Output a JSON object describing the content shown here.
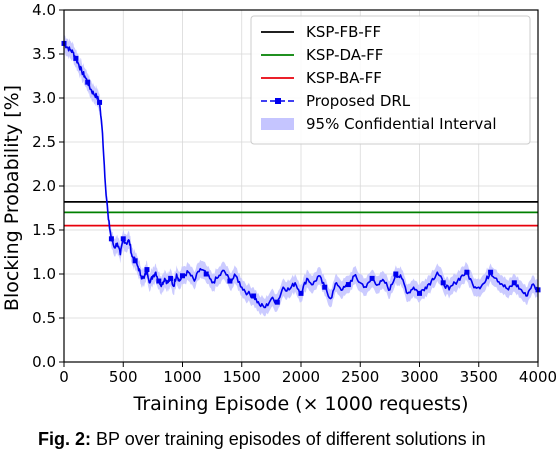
{
  "caption": {
    "label": "Fig. 2:",
    "text": "BP over training episodes of different solutions in"
  },
  "chart_data": {
    "type": "line",
    "title": "",
    "xlabel": "Training Episode (× 1000 requests)",
    "ylabel": "Blocking Probability [%]",
    "xlim": [
      0,
      4000
    ],
    "ylim": [
      0,
      4.0
    ],
    "xticks": [
      0,
      500,
      1000,
      1500,
      2000,
      2500,
      3000,
      3500,
      4000
    ],
    "yticks": [
      0.0,
      0.5,
      1.0,
      1.5,
      2.0,
      2.5,
      3.0,
      3.5,
      4.0
    ],
    "grid": true,
    "legend_position": "top-right",
    "baselines": [
      {
        "name": "KSP-FB-FF",
        "y": 1.82,
        "color": "#000000"
      },
      {
        "name": "KSP-DA-FF",
        "y": 1.7,
        "color": "#008000"
      },
      {
        "name": "KSP-BA-FF",
        "y": 1.55,
        "color": "#e8000b"
      }
    ],
    "series": [
      {
        "name": "Proposed DRL",
        "color": "#0000ee",
        "band_name": "95% Confidential Interval",
        "band_color": "#c5c5ff",
        "band_half_width": 0.1,
        "x": [
          0,
          25,
          50,
          75,
          100,
          125,
          150,
          175,
          200,
          225,
          250,
          275,
          300,
          325,
          350,
          375,
          400,
          425,
          450,
          475,
          500,
          525,
          550,
          575,
          600,
          625,
          650,
          675,
          700,
          725,
          750,
          775,
          800,
          825,
          850,
          875,
          900,
          925,
          950,
          975,
          1000,
          1050,
          1100,
          1150,
          1200,
          1250,
          1300,
          1350,
          1400,
          1450,
          1500,
          1550,
          1600,
          1650,
          1700,
          1750,
          1800,
          1850,
          1900,
          1950,
          2000,
          2050,
          2100,
          2150,
          2200,
          2250,
          2300,
          2350,
          2400,
          2450,
          2500,
          2550,
          2600,
          2650,
          2700,
          2750,
          2800,
          2850,
          2900,
          2950,
          3000,
          3050,
          3100,
          3150,
          3200,
          3250,
          3300,
          3350,
          3400,
          3450,
          3500,
          3550,
          3600,
          3650,
          3700,
          3750,
          3800,
          3850,
          3900,
          3950,
          4000
        ],
        "y": [
          3.62,
          3.58,
          3.55,
          3.52,
          3.45,
          3.38,
          3.3,
          3.25,
          3.18,
          3.1,
          3.05,
          3.02,
          2.95,
          2.6,
          2.0,
          1.62,
          1.4,
          1.3,
          1.35,
          1.22,
          1.4,
          1.35,
          1.38,
          1.2,
          1.15,
          1.08,
          0.98,
          0.95,
          1.05,
          0.9,
          0.98,
          1.02,
          0.92,
          0.88,
          0.95,
          0.9,
          0.95,
          0.86,
          1.0,
          0.92,
          0.98,
          1.02,
          0.92,
          1.06,
          1.0,
          0.9,
          0.96,
          1.04,
          0.92,
          0.98,
          0.85,
          0.78,
          0.75,
          0.65,
          0.62,
          0.72,
          0.68,
          0.85,
          0.82,
          0.9,
          0.78,
          0.95,
          0.88,
          0.98,
          0.85,
          0.72,
          0.9,
          0.82,
          0.88,
          0.98,
          0.9,
          0.85,
          0.95,
          0.88,
          0.92,
          0.82,
          1.0,
          0.95,
          0.78,
          0.85,
          0.78,
          0.85,
          0.92,
          1.02,
          0.9,
          0.82,
          0.9,
          0.97,
          1.02,
          0.88,
          0.85,
          0.9,
          1.02,
          0.95,
          0.88,
          0.82,
          0.9,
          0.83,
          0.75,
          0.88,
          0.82
        ]
      }
    ]
  }
}
